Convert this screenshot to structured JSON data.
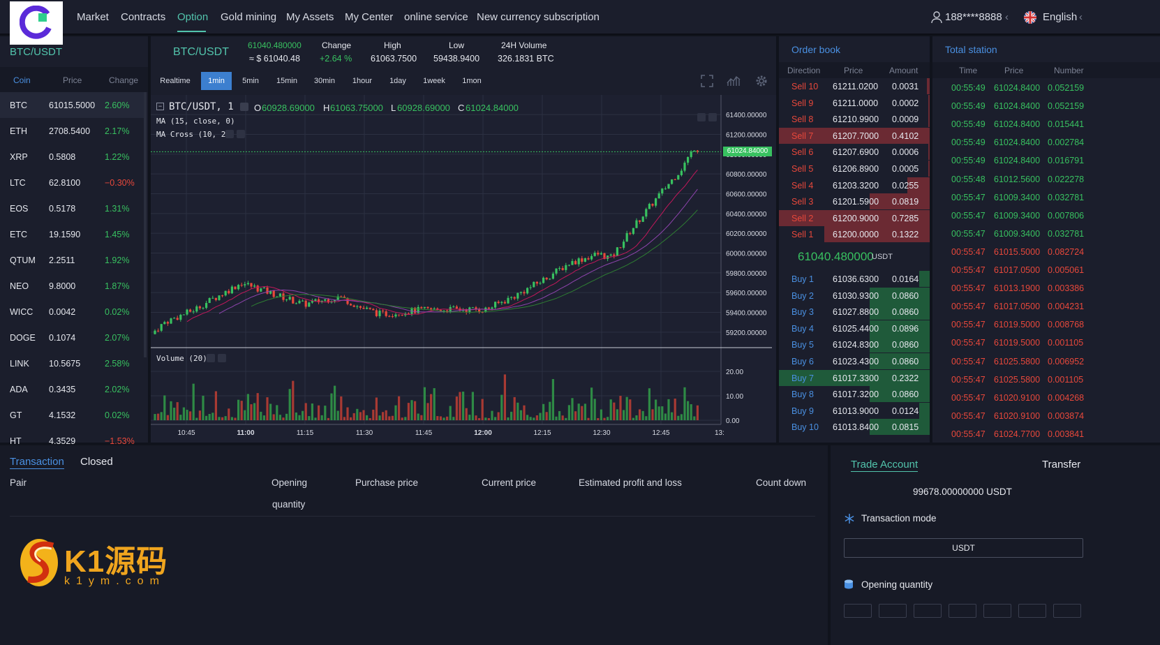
{
  "nav": {
    "items": [
      "Market",
      "Contracts",
      "Option",
      "Gold mining",
      "My Assets",
      "My Center",
      "online service",
      "New currency subscription"
    ],
    "active": "Option",
    "user": "188****8888",
    "language": "English"
  },
  "markets": {
    "title": "BTC/USDT",
    "headers": [
      "Coin",
      "Price",
      "Change"
    ],
    "rows": [
      {
        "coin": "BTC",
        "price": "61015.5000",
        "change": "2.60%",
        "dir": "up"
      },
      {
        "coin": "ETH",
        "price": "2708.5400",
        "change": "2.17%",
        "dir": "up"
      },
      {
        "coin": "XRP",
        "price": "0.5808",
        "change": "1.22%",
        "dir": "up"
      },
      {
        "coin": "LTC",
        "price": "62.8100",
        "change": "−0.30%",
        "dir": "down"
      },
      {
        "coin": "EOS",
        "price": "0.5178",
        "change": "1.31%",
        "dir": "up"
      },
      {
        "coin": "ETC",
        "price": "19.1590",
        "change": "1.45%",
        "dir": "up"
      },
      {
        "coin": "QTUM",
        "price": "2.2511",
        "change": "1.92%",
        "dir": "up"
      },
      {
        "coin": "NEO",
        "price": "9.8000",
        "change": "1.87%",
        "dir": "up"
      },
      {
        "coin": "WICC",
        "price": "0.0042",
        "change": "0.02%",
        "dir": "up"
      },
      {
        "coin": "DOGE",
        "price": "0.1074",
        "change": "2.07%",
        "dir": "up"
      },
      {
        "coin": "LINK",
        "price": "10.5675",
        "change": "2.58%",
        "dir": "up"
      },
      {
        "coin": "ADA",
        "price": "0.3435",
        "change": "2.02%",
        "dir": "up"
      },
      {
        "coin": "GT",
        "price": "4.1532",
        "change": "0.02%",
        "dir": "up"
      },
      {
        "coin": "HT",
        "price": "4.3529",
        "change": "−1.53%",
        "dir": "down"
      }
    ]
  },
  "ticker": {
    "pair": "BTC/USDT",
    "last": "61040.480000",
    "last_usd": "≈ $ 61040.48",
    "change_label": "Change",
    "change": "+2.64 %",
    "high_label": "High",
    "high": "61063.7500",
    "low_label": "Low",
    "low": "59438.9400",
    "vol_label": "24H Volume",
    "vol": "326.1831 BTC"
  },
  "timeframes": [
    "Realtime",
    "1min",
    "5min",
    "15min",
    "30min",
    "1hour",
    "1day",
    "1week",
    "1mon"
  ],
  "active_tf": "1min",
  "chart": {
    "symbol": "BTC/USDT, 1",
    "o_label": "O",
    "o": "60928.69000",
    "h_label": "H",
    "h": "61063.75000",
    "l_label": "L",
    "l": "60928.69000",
    "c_label": "C",
    "c": "61024.84000",
    "ma_label": "MA (15, close, 0)",
    "macross_label": "MA Cross (10, 20)",
    "volume_label": "Volume (20)",
    "price_tag": "61024.84000"
  },
  "chart_data": {
    "type": "candlestick",
    "y_ticks": [
      "61400.00000",
      "61200.00000",
      "61000.00000",
      "60800.00000",
      "60600.00000",
      "60400.00000",
      "60200.00000",
      "60000.00000",
      "59800.00000",
      "59600.00000",
      "59400.00000",
      "59200.00000"
    ],
    "ylim": [
      59100,
      61500
    ],
    "vol_ticks": [
      "20.00",
      "10.00",
      "0.00"
    ],
    "x_ticks": [
      "10:45",
      "11:00",
      "11:15",
      "11:30",
      "11:45",
      "12:00",
      "12:15",
      "12:30",
      "12:45",
      "13:"
    ],
    "last_price": 61024.84
  },
  "orderbook": {
    "title": "Order book",
    "headers": [
      "Direction",
      "Price",
      "Amount"
    ],
    "sells": [
      {
        "dir": "Sell 10",
        "price": "61211.0200",
        "amount": "0.0031",
        "depth": 0.02
      },
      {
        "dir": "Sell 9",
        "price": "61211.0000",
        "amount": "0.0002",
        "depth": 0.01
      },
      {
        "dir": "Sell 8",
        "price": "61210.9900",
        "amount": "0.0009",
        "depth": 0.01
      },
      {
        "dir": "Sell 7",
        "price": "61207.7000",
        "amount": "0.4102",
        "depth": 1.0
      },
      {
        "dir": "Sell 6",
        "price": "61207.6900",
        "amount": "0.0006",
        "depth": 0.01
      },
      {
        "dir": "Sell 5",
        "price": "61206.8900",
        "amount": "0.0005",
        "depth": 0.01
      },
      {
        "dir": "Sell 4",
        "price": "61203.3200",
        "amount": "0.0255",
        "depth": 0.15
      },
      {
        "dir": "Sell 3",
        "price": "61201.5900",
        "amount": "0.0819",
        "depth": 0.4
      },
      {
        "dir": "Sell 2",
        "price": "61200.9000",
        "amount": "0.7285",
        "depth": 1.0
      },
      {
        "dir": "Sell 1",
        "price": "61200.0000",
        "amount": "0.1322",
        "depth": 0.7
      }
    ],
    "mid_price": "61040.480000",
    "mid_unit": "USDT",
    "buys": [
      {
        "dir": "Buy 1",
        "price": "61036.6300",
        "amount": "0.0164",
        "depth": 0.07
      },
      {
        "dir": "Buy 2",
        "price": "61030.9300",
        "amount": "0.0860",
        "depth": 0.4
      },
      {
        "dir": "Buy 3",
        "price": "61027.8800",
        "amount": "0.0860",
        "depth": 0.4
      },
      {
        "dir": "Buy 4",
        "price": "61025.4400",
        "amount": "0.0896",
        "depth": 0.4
      },
      {
        "dir": "Buy 5",
        "price": "61024.8300",
        "amount": "0.0860",
        "depth": 0.4
      },
      {
        "dir": "Buy 6",
        "price": "61023.4300",
        "amount": "0.0860",
        "depth": 0.4
      },
      {
        "dir": "Buy 7",
        "price": "61017.3300",
        "amount": "0.2322",
        "depth": 1.0
      },
      {
        "dir": "Buy 8",
        "price": "61017.3200",
        "amount": "0.0860",
        "depth": 0.4
      },
      {
        "dir": "Buy 9",
        "price": "61013.9000",
        "amount": "0.0124",
        "depth": 0.07
      },
      {
        "dir": "Buy 10",
        "price": "61013.8400",
        "amount": "0.0815",
        "depth": 0.4
      }
    ]
  },
  "trades": {
    "title": "Total station",
    "headers": [
      "Time",
      "Price",
      "Number"
    ],
    "rows": [
      {
        "time": "00:55:49",
        "price": "61024.8400",
        "num": "0.052159",
        "dir": "up"
      },
      {
        "time": "00:55:49",
        "price": "61024.8400",
        "num": "0.052159",
        "dir": "up"
      },
      {
        "time": "00:55:49",
        "price": "61024.8400",
        "num": "0.015441",
        "dir": "up"
      },
      {
        "time": "00:55:49",
        "price": "61024.8400",
        "num": "0.002784",
        "dir": "up"
      },
      {
        "time": "00:55:49",
        "price": "61024.8400",
        "num": "0.016791",
        "dir": "up"
      },
      {
        "time": "00:55:48",
        "price": "61012.5600",
        "num": "0.022278",
        "dir": "up"
      },
      {
        "time": "00:55:47",
        "price": "61009.3400",
        "num": "0.032781",
        "dir": "up"
      },
      {
        "time": "00:55:47",
        "price": "61009.3400",
        "num": "0.007806",
        "dir": "up"
      },
      {
        "time": "00:55:47",
        "price": "61009.3400",
        "num": "0.032781",
        "dir": "up"
      },
      {
        "time": "00:55:47",
        "price": "61015.5000",
        "num": "0.082724",
        "dir": "down"
      },
      {
        "time": "00:55:47",
        "price": "61017.0500",
        "num": "0.005061",
        "dir": "down"
      },
      {
        "time": "00:55:47",
        "price": "61013.1900",
        "num": "0.003386",
        "dir": "down"
      },
      {
        "time": "00:55:47",
        "price": "61017.0500",
        "num": "0.004231",
        "dir": "down"
      },
      {
        "time": "00:55:47",
        "price": "61019.5000",
        "num": "0.008768",
        "dir": "down"
      },
      {
        "time": "00:55:47",
        "price": "61019.5000",
        "num": "0.001105",
        "dir": "down"
      },
      {
        "time": "00:55:47",
        "price": "61025.5800",
        "num": "0.006952",
        "dir": "down"
      },
      {
        "time": "00:55:47",
        "price": "61025.5800",
        "num": "0.001105",
        "dir": "down"
      },
      {
        "time": "00:55:47",
        "price": "61020.9100",
        "num": "0.004268",
        "dir": "down"
      },
      {
        "time": "00:55:47",
        "price": "61020.9100",
        "num": "0.003874",
        "dir": "down"
      },
      {
        "time": "00:55:47",
        "price": "61024.7700",
        "num": "0.003841",
        "dir": "down"
      }
    ]
  },
  "positions": {
    "tab_active": "Transaction",
    "tab_other": "Closed",
    "cols": {
      "pair": "Pair",
      "opening": "Opening",
      "quantity": "quantity",
      "purchase": "Purchase price",
      "current": "Current price",
      "pnl": "Estimated profit and loss",
      "countdown": "Count down"
    }
  },
  "trade_account": {
    "title": "Trade Account",
    "transfer": "Transfer",
    "balance": "99678.00000000 USDT",
    "mode_label": "Transaction mode",
    "mode_value": "USDT",
    "qty_label": "Opening quantity"
  },
  "watermark": {
    "brand": "K1源码",
    "site": "k1ym.com"
  },
  "colors": {
    "up": "#38c160",
    "down": "#e8483b",
    "accent": "#52c4ac",
    "blue": "#4a90e2"
  }
}
